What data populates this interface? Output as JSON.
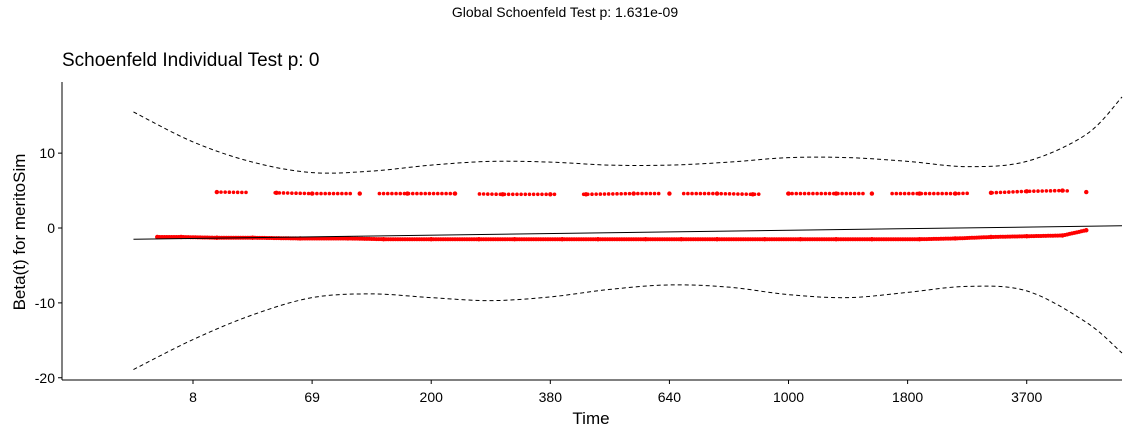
{
  "suptitle": "Global Schoenfeld Test p: 1.631e-09",
  "chart_data": {
    "type": "scatter",
    "title": "Schoenfeld Individual Test p: 0",
    "xlabel": "Time",
    "ylabel": "Beta(t) for meritoSim",
    "x_tick_labels": [
      "8",
      "69",
      "200",
      "380",
      "640",
      "1000",
      "1800",
      "3700"
    ],
    "y_ticks": [
      -20,
      -10,
      0,
      10
    ],
    "ylim": [
      -20.3,
      19.5
    ],
    "xlim": [
      -0.6,
      8.3
    ],
    "grid": false,
    "point_color": "#ff0000",
    "series": [
      {
        "x": [
          0.2,
          0.4,
          0.7,
          1.0,
          1.4,
          1.8,
          2.1,
          2.5,
          2.9,
          3.2,
          3.6,
          3.9,
          4.3,
          4.6,
          4.9,
          5.3,
          5.6,
          5.9,
          6.2,
          6.6,
          6.9,
          7.2,
          7.5,
          7.8,
          8.0
        ],
        "y": [
          -1.2,
          -1.2,
          -1.3,
          -1.3,
          -1.4,
          -1.4,
          -1.5,
          -1.5,
          -1.5,
          -1.5,
          -1.5,
          -1.5,
          -1.5,
          -1.5,
          -1.5,
          -1.5,
          -1.5,
          -1.5,
          -1.5,
          -1.5,
          -1.4,
          -1.2,
          -1.1,
          -1.0,
          -0.3
        ]
      },
      {
        "x": [
          0.7,
          1.2,
          1.5,
          1.9,
          2.3,
          2.7,
          3.1,
          3.5,
          3.8,
          4.2,
          4.5,
          4.9,
          5.2,
          5.5,
          5.9,
          6.2,
          6.6,
          6.9,
          7.2,
          7.5,
          7.8,
          8.0
        ],
        "y": [
          4.8,
          4.7,
          4.6,
          4.6,
          4.6,
          4.6,
          4.5,
          4.5,
          4.5,
          4.6,
          4.6,
          4.6,
          4.5,
          4.6,
          4.6,
          4.6,
          4.6,
          4.6,
          4.7,
          4.9,
          5.0,
          4.8
        ]
      }
    ],
    "fit": {
      "x": [
        0.0,
        8.3
      ],
      "y": [
        -1.5,
        0.3
      ]
    },
    "ci_upper": {
      "x": [
        0.0,
        0.5,
        1.0,
        1.5,
        2.0,
        2.5,
        3.0,
        3.5,
        4.0,
        4.5,
        5.0,
        5.5,
        6.0,
        6.5,
        7.0,
        7.5,
        8.0,
        8.3
      ],
      "y": [
        15.5,
        11.5,
        8.8,
        7.4,
        7.6,
        8.4,
        8.9,
        8.8,
        8.4,
        8.4,
        8.8,
        9.4,
        9.4,
        8.9,
        8.2,
        8.9,
        12.5,
        17.5
      ]
    },
    "ci_lower": {
      "x": [
        0.0,
        0.5,
        1.0,
        1.5,
        2.0,
        2.5,
        3.0,
        3.5,
        4.0,
        4.5,
        5.0,
        5.5,
        6.0,
        6.5,
        7.0,
        7.5,
        8.0,
        8.3
      ],
      "y": [
        -18.9,
        -14.9,
        -11.6,
        -9.3,
        -8.8,
        -9.3,
        -9.7,
        -9.2,
        -8.2,
        -7.6,
        -7.9,
        -8.9,
        -9.3,
        -8.6,
        -7.8,
        -8.4,
        -12.6,
        -16.7
      ]
    }
  }
}
